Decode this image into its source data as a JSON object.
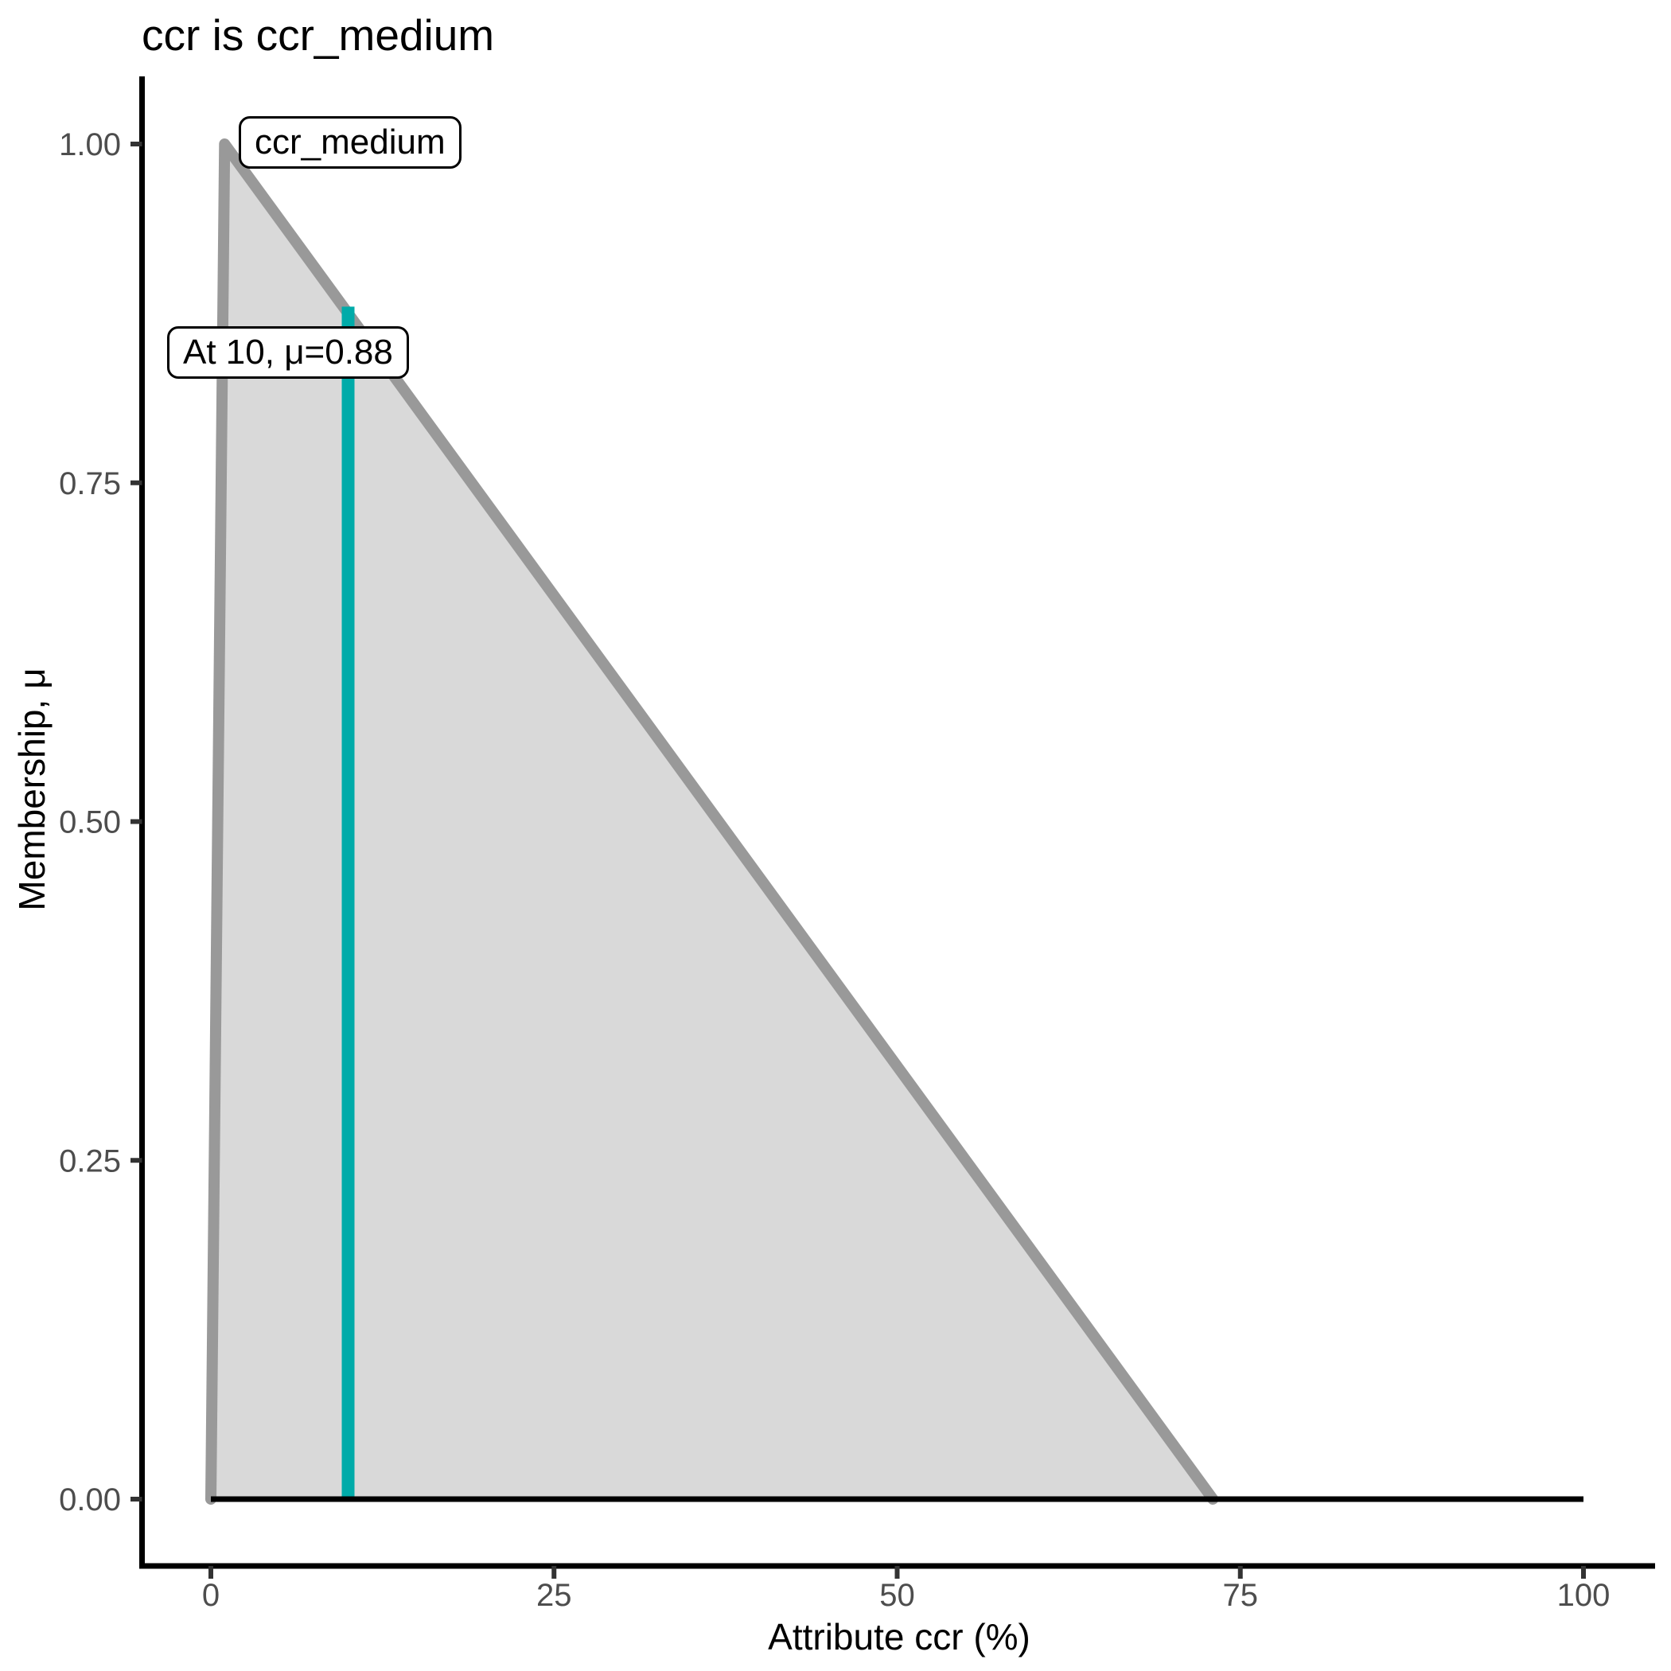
{
  "chart_data": {
    "type": "area",
    "title": "ccr is ccr_medium",
    "xlabel": "Attribute ccr (%)",
    "ylabel": "Membership, μ",
    "xlim": [
      0,
      100
    ],
    "ylim": [
      0,
      1
    ],
    "grid": "off",
    "xticks": [
      {
        "label": "0",
        "value": 0
      },
      {
        "label": "25",
        "value": 25
      },
      {
        "label": "50",
        "value": 50
      },
      {
        "label": "75",
        "value": 75
      },
      {
        "label": "100",
        "value": 100
      }
    ],
    "yticks": [
      {
        "label": "0.00",
        "value": 0.0
      },
      {
        "label": "0.25",
        "value": 0.25
      },
      {
        "label": "0.50",
        "value": 0.5
      },
      {
        "label": "0.75",
        "value": 0.75
      },
      {
        "label": "1.00",
        "value": 1.0
      }
    ],
    "membership_function": {
      "name": "ccr_medium",
      "shape": "triangle",
      "vertices": [
        [
          0,
          0
        ],
        [
          1,
          1
        ],
        [
          73,
          0
        ]
      ]
    },
    "zero_baseline": {
      "from_x": 0,
      "to_x": 100,
      "mu": 0
    },
    "marker": {
      "x": 10,
      "mu": 0.88
    },
    "annotations": [
      {
        "text": "ccr_medium"
      },
      {
        "text": "At 10, μ=0.88"
      }
    ],
    "colors": {
      "fill": "#D9D9D9",
      "outline": "#999999",
      "marker": "#00ABA9",
      "baseline": "#000000",
      "axis": "#000000",
      "tick": "#333333",
      "tick_label": "#4D4D4D",
      "text": "#000000"
    }
  }
}
